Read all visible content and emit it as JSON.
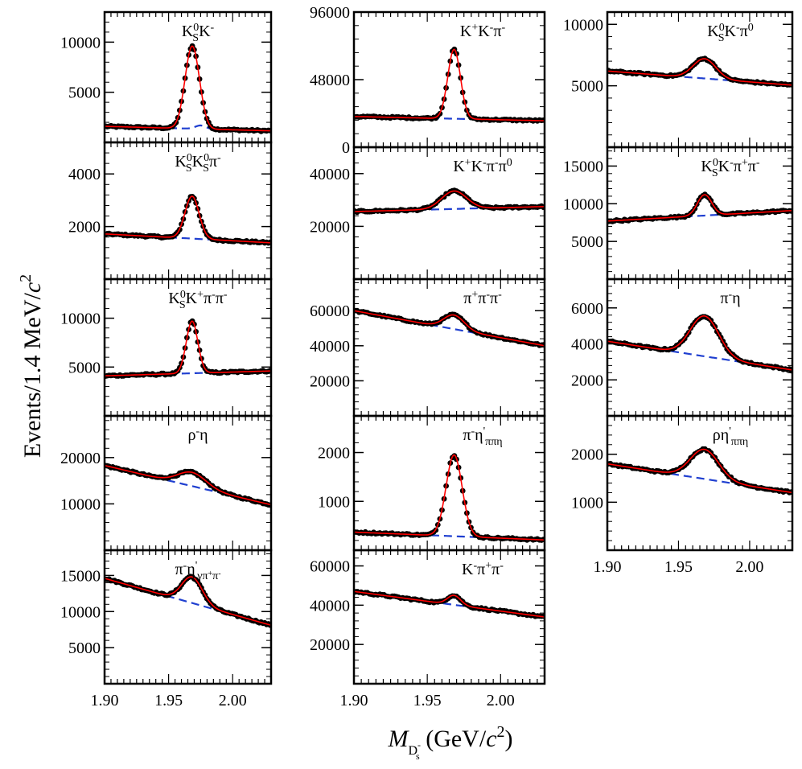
{
  "figure": {
    "ylabel": "Events/1.4 MeV/c²",
    "ylabel_parts": {
      "pre": "Events/1.4 MeV/",
      "c": "c",
      "exp": "2"
    },
    "xlabel_parts": {
      "M": "M",
      "sub": "D",
      "subsup": "-",
      "subsub": "s",
      "post": " (GeV/",
      "c": "c",
      "exp": "2",
      "close": ")"
    },
    "colors": {
      "data": "#000000",
      "fit": "#ff0000",
      "background": "#1f3fd0",
      "frame": "#000000"
    }
  },
  "chart_data": [
    {
      "type": "scatter",
      "name": "KS0 K-",
      "column": 0,
      "row": 0,
      "label": [
        {
          "t": "K"
        },
        {
          "t": "0",
          "sup": 1
        },
        {
          "t": "S",
          "sub": 1
        },
        {
          "t": "K"
        },
        {
          "t": "-",
          "sup": 1
        }
      ],
      "xlim": [
        1.9,
        2.03
      ],
      "ylim": [
        0,
        13000
      ],
      "yticks": [
        5000,
        10000
      ],
      "bkg": [
        1600,
        1150
      ],
      "peak": [
        9600,
        0.0055
      ],
      "bump": [
        350,
        1.975,
        0.004
      ]
    },
    {
      "type": "scatter",
      "name": "KS0 KS0 pi-",
      "column": 0,
      "row": 1,
      "label": [
        {
          "t": "K"
        },
        {
          "t": "0",
          "sup": 1
        },
        {
          "t": "S",
          "sub": 1
        },
        {
          "t": "K"
        },
        {
          "t": "0",
          "sup": 1
        },
        {
          "t": "S",
          "sub": 1
        },
        {
          "t": "π"
        },
        {
          "t": "-",
          "sup": 1
        }
      ],
      "xlim": [
        1.9,
        2.03
      ],
      "ylim": [
        0,
        5200
      ],
      "yticks": [
        2000,
        4000
      ],
      "bkg": [
        1720,
        1380
      ],
      "peak": [
        3150,
        0.0055
      ]
    },
    {
      "type": "scatter",
      "name": "KS0 K+ pi- pi-",
      "column": 0,
      "row": 2,
      "label": [
        {
          "t": "K"
        },
        {
          "t": "0",
          "sup": 1
        },
        {
          "t": "S",
          "sub": 1
        },
        {
          "t": "K"
        },
        {
          "t": "+",
          "sup": 1
        },
        {
          "t": "π"
        },
        {
          "t": "-",
          "sup": 1
        },
        {
          "t": "π"
        },
        {
          "t": "-",
          "sup": 1
        }
      ],
      "xlim": [
        1.9,
        2.03
      ],
      "ylim": [
        0,
        14000
      ],
      "yticks": [
        5000,
        10000
      ],
      "bkg": [
        4100,
        4600
      ],
      "peak": [
        9700,
        0.0045
      ]
    },
    {
      "type": "scatter",
      "name": "rho- eta",
      "column": 0,
      "row": 3,
      "label": [
        {
          "t": "ρ"
        },
        {
          "t": "-",
          "sup": 1
        },
        {
          "t": "η"
        }
      ],
      "xlim": [
        1.9,
        2.03
      ],
      "ylim": [
        0,
        29000
      ],
      "yticks": [
        10000,
        20000
      ],
      "bkg": [
        18300,
        9800
      ],
      "peak": [
        16800,
        0.011
      ]
    },
    {
      "type": "scatter",
      "name": "pi- eta'(gamma pi+ pi-)",
      "column": 0,
      "row": 4,
      "label": [
        {
          "t": "π"
        },
        {
          "t": "-",
          "sup": 1
        },
        {
          "t": "η"
        },
        {
          "t": "'",
          "sup": 1
        },
        {
          "t": "γπ",
          "sub": 1
        },
        {
          "t": "+",
          "sub": 2
        },
        {
          "t": "π",
          "sub": 1
        },
        {
          "t": "-",
          "sub": 2
        }
      ],
      "xlim": [
        1.9,
        2.03
      ],
      "ylim": [
        0,
        18500
      ],
      "yticks": [
        5000,
        10000,
        15000
      ],
      "bkg": [
        14600,
        8100
      ],
      "peak": [
        14800,
        0.008
      ]
    },
    {
      "type": "scatter",
      "name": "K+ K- pi-",
      "column": 1,
      "row": 0,
      "label": [
        {
          "t": "K"
        },
        {
          "t": "+",
          "sup": 1
        },
        {
          "t": "K"
        },
        {
          "t": "-",
          "sup": 1
        },
        {
          "t": "π"
        },
        {
          "t": "-",
          "sup": 1
        }
      ],
      "xlim": [
        1.9,
        2.03
      ],
      "ylim": [
        0,
        96000
      ],
      "yticks": [
        0,
        48000,
        96000
      ],
      "bkg": [
        21800,
        18800
      ],
      "peak": [
        69500,
        0.0043
      ]
    },
    {
      "type": "scatter",
      "name": "K+ K- pi- pi0",
      "column": 1,
      "row": 1,
      "label": [
        {
          "t": "K"
        },
        {
          "t": "+",
          "sup": 1
        },
        {
          "t": "K"
        },
        {
          "t": "-",
          "sup": 1
        },
        {
          "t": "π"
        },
        {
          "t": "-",
          "sup": 1
        },
        {
          "t": "π"
        },
        {
          "t": "0",
          "sup": 1
        }
      ],
      "xlim": [
        1.9,
        2.03
      ],
      "ylim": [
        0,
        50000
      ],
      "yticks": [
        20000,
        40000
      ],
      "bkg": [
        25600,
        27500
      ],
      "peak": [
        33400,
        0.0085
      ]
    },
    {
      "type": "scatter",
      "name": "pi+ pi- pi-",
      "column": 1,
      "row": 2,
      "label": [
        {
          "t": "π"
        },
        {
          "t": "+",
          "sup": 1
        },
        {
          "t": "π"
        },
        {
          "t": "-",
          "sup": 1
        },
        {
          "t": "π"
        },
        {
          "t": "-",
          "sup": 1
        }
      ],
      "xlim": [
        1.9,
        2.03
      ],
      "ylim": [
        0,
        78000
      ],
      "yticks": [
        20000,
        40000,
        60000
      ],
      "bkg": [
        60000,
        40000
      ],
      "peak": [
        57500,
        0.007
      ]
    },
    {
      "type": "scatter",
      "name": "pi- eta'(pi pi eta)",
      "column": 1,
      "row": 3,
      "label": [
        {
          "t": "π"
        },
        {
          "t": "-",
          "sup": 1
        },
        {
          "t": "η"
        },
        {
          "t": "'",
          "sup": 1
        },
        {
          "t": "ππη",
          "sub": 1
        }
      ],
      "xlim": [
        1.9,
        2.03
      ],
      "ylim": [
        0,
        2750
      ],
      "yticks": [
        1000,
        2000
      ],
      "bkg": [
        370,
        210
      ],
      "peak": [
        1950,
        0.0055
      ]
    },
    {
      "type": "scatter",
      "name": "K- pi+ pi-",
      "column": 1,
      "row": 4,
      "label": [
        {
          "t": "K"
        },
        {
          "t": "-",
          "sup": 1
        },
        {
          "t": "π"
        },
        {
          "t": "+",
          "sup": 1
        },
        {
          "t": "π"
        },
        {
          "t": "-",
          "sup": 1
        }
      ],
      "xlim": [
        1.9,
        2.03
      ],
      "ylim": [
        0,
        68000
      ],
      "yticks": [
        20000,
        40000,
        60000
      ],
      "bkg": [
        47000,
        34000
      ],
      "peak": [
        45000,
        0.0045
      ]
    },
    {
      "type": "scatter",
      "name": "KS0 K- pi0",
      "column": 2,
      "row": 0,
      "label": [
        {
          "t": "K"
        },
        {
          "t": "0",
          "sup": 1
        },
        {
          "t": "S",
          "sub": 1
        },
        {
          "t": "K"
        },
        {
          "t": "-",
          "sup": 1
        },
        {
          "t": "π"
        },
        {
          "t": "0",
          "sup": 1
        }
      ],
      "xlim": [
        1.9,
        2.03
      ],
      "ylim": [
        0,
        11000
      ],
      "yticks": [
        5000,
        10000
      ],
      "bkg": [
        6200,
        5050
      ],
      "peak": [
        7200,
        0.008
      ]
    },
    {
      "type": "scatter",
      "name": "KS0 K- pi+ pi-",
      "column": 2,
      "row": 1,
      "label": [
        {
          "t": "K"
        },
        {
          "t": "0",
          "sup": 1
        },
        {
          "t": "S",
          "sub": 1
        },
        {
          "t": "K"
        },
        {
          "t": "-",
          "sup": 1
        },
        {
          "t": "π"
        },
        {
          "t": "+",
          "sup": 1
        },
        {
          "t": "π"
        },
        {
          "t": "-",
          "sup": 1
        }
      ],
      "xlim": [
        1.9,
        2.03
      ],
      "ylim": [
        0,
        17500
      ],
      "yticks": [
        5000,
        10000,
        15000
      ],
      "bkg": [
        7700,
        9100
      ],
      "peak": [
        11200,
        0.005
      ]
    },
    {
      "type": "scatter",
      "name": "pi- eta",
      "column": 2,
      "row": 2,
      "label": [
        {
          "t": "π"
        },
        {
          "t": "-",
          "sup": 1
        },
        {
          "t": "η"
        }
      ],
      "xlim": [
        1.9,
        2.03
      ],
      "ylim": [
        0,
        7600
      ],
      "yticks": [
        2000,
        4000,
        6000
      ],
      "bkg": [
        4150,
        2550
      ],
      "peak": [
        5550,
        0.01
      ]
    },
    {
      "type": "scatter",
      "name": "rho eta'(pi pi eta)",
      "column": 2,
      "row": 3,
      "label": [
        {
          "t": "ρ"
        },
        {
          "t": "η"
        },
        {
          "t": "'",
          "sup": 1
        },
        {
          "t": "ππη",
          "sub": 1
        }
      ],
      "xlim": [
        1.9,
        2.03
      ],
      "ylim": [
        0,
        2800
      ],
      "yticks": [
        1000,
        2000
      ],
      "bkg": [
        1800,
        1200
      ],
      "peak": [
        2100,
        0.01
      ]
    }
  ],
  "x_axis": {
    "xlim": [
      1.9,
      2.03
    ],
    "ticks": [
      1.9,
      1.95,
      2.0
    ],
    "tick_labels": [
      "1.90",
      "1.95",
      "2.00"
    ]
  }
}
